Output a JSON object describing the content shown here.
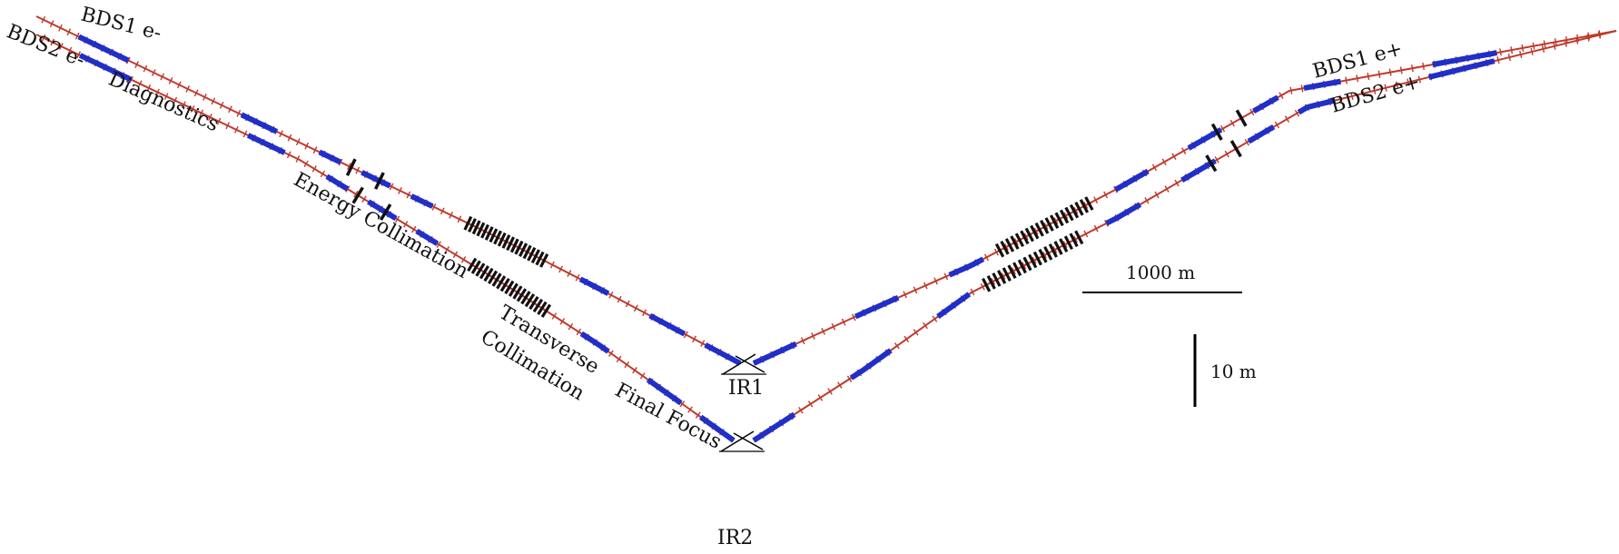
{
  "diagram": {
    "beamlines": {
      "bds1_electron": "BDS1 e-",
      "bds2_electron": "BDS2 e-",
      "bds1_positron": "BDS1 e+",
      "bds2_positron": "BDS2 e+"
    },
    "sections": {
      "diagnostics": "Diagnostics",
      "energy_collimation": "Energy Collimation",
      "transverse_line1": "Transverse",
      "transverse_line2": "Collimation",
      "final_focus": "Final Focus"
    },
    "interaction_regions": {
      "ir1": "IR1",
      "ir2": "IR2"
    },
    "scale_bars": {
      "horizontal": "1000 m",
      "vertical": "10 m"
    }
  },
  "colors": {
    "beamline": "#c0392b",
    "quadrupole": "#1f2fc8",
    "sextupole": "#111111"
  }
}
